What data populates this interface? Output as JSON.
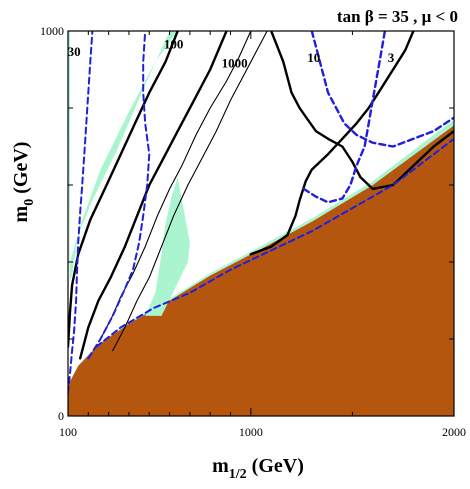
{
  "chart_data": {
    "type": "line",
    "title": "tan β = 35 ,  μ < 0",
    "xlabel": "m1/2 (GeV)",
    "ylabel": "m0 (GeV)",
    "xlabel_main": "m",
    "xlabel_sub": "1/2",
    "xlabel_unit": " (GeV)",
    "ylabel_main": "m",
    "ylabel_sub": "0",
    "ylabel_unit": " (GeV)",
    "xlim": [
      100,
      2000
    ],
    "ylim": [
      0,
      1000
    ],
    "x_ticks": [
      {
        "value": 100,
        "label": "100"
      },
      {
        "value": 1000,
        "label": "1000"
      },
      {
        "value": 2000,
        "label": "2000"
      }
    ],
    "y_ticks": [
      {
        "value": 0,
        "label": "0"
      },
      {
        "value": 1000,
        "label": "1000"
      }
    ],
    "grid": false,
    "colors": {
      "excluded": "#b5560f",
      "relic_band": "#aaf5cf",
      "contour": "#000000",
      "dashed": "#1f1fdd"
    },
    "regions": [
      {
        "name": "charged LSP excluded",
        "color": "#b5560f",
        "points": [
          [
            100,
            0
          ],
          [
            100,
            80
          ],
          [
            150,
            130
          ],
          [
            250,
            185
          ],
          [
            400,
            240
          ],
          [
            600,
            300
          ],
          [
            800,
            365
          ],
          [
            1000,
            420
          ],
          [
            1300,
            505
          ],
          [
            1600,
            600
          ],
          [
            2000,
            755
          ],
          [
            2000,
            0
          ]
        ]
      },
      {
        "name": "relic density band (funnel, left)",
        "color": "#aaf5cf",
        "points": [
          [
            100,
            1000
          ],
          [
            110,
            1000
          ],
          [
            110,
            400
          ],
          [
            170,
            510
          ],
          [
            260,
            640
          ],
          [
            400,
            790
          ],
          [
            530,
            920
          ],
          [
            640,
            1000
          ],
          [
            600,
            1000
          ],
          [
            480,
            860
          ],
          [
            340,
            690
          ],
          [
            220,
            560
          ],
          [
            150,
            470
          ],
          [
            120,
            365
          ],
          [
            108,
            350
          ]
        ]
      },
      {
        "name": "relic density band (funnel, middle)",
        "color": "#aaf5cf",
        "points": [
          [
            480,
            260
          ],
          [
            530,
            320
          ],
          [
            560,
            420
          ],
          [
            580,
            500
          ],
          [
            610,
            570
          ],
          [
            640,
            620
          ],
          [
            700,
            450
          ],
          [
            690,
            400
          ],
          [
            560,
            260
          ]
        ]
      },
      {
        "name": "relic density band (coannihilation strip)",
        "color": "#aaf5cf",
        "points": [
          [
            100,
            80
          ],
          [
            150,
            132
          ],
          [
            250,
            188
          ],
          [
            400,
            244
          ],
          [
            600,
            305
          ],
          [
            800,
            371
          ],
          [
            1000,
            427
          ],
          [
            1300,
            513
          ],
          [
            1600,
            610
          ],
          [
            2000,
            770
          ],
          [
            2000,
            755
          ],
          [
            1600,
            600
          ],
          [
            1300,
            505
          ],
          [
            1000,
            420
          ],
          [
            800,
            365
          ],
          [
            600,
            300
          ],
          [
            400,
            240
          ],
          [
            250,
            185
          ],
          [
            150,
            130
          ],
          [
            100,
            80
          ]
        ]
      },
      {
        "name": "relic density band (bulk)",
        "color": "#aaf5cf",
        "points": [
          [
            100,
            1000
          ],
          [
            104,
            1000
          ],
          [
            104,
            940
          ],
          [
            100,
            940
          ]
        ]
      }
    ],
    "series": [
      {
        "name": "100",
        "style": "solid",
        "width": 2.4,
        "label_at": [
          620,
          955
        ],
        "points": [
          [
            160,
            150
          ],
          [
            200,
            230
          ],
          [
            250,
            300
          ],
          [
            310,
            360
          ],
          [
            380,
            440
          ],
          [
            440,
            520
          ],
          [
            500,
            600
          ],
          [
            560,
            660
          ],
          [
            640,
            740
          ],
          [
            720,
            820
          ],
          [
            800,
            900
          ],
          [
            880,
            1000
          ]
        ]
      },
      {
        "name": "100",
        "style": "solid",
        "width": 2.4,
        "points": [
          [
            100,
            180
          ],
          [
            110,
            270
          ],
          [
            120,
            340
          ],
          [
            150,
            420
          ],
          [
            210,
            510
          ],
          [
            290,
            600
          ],
          [
            360,
            680
          ],
          [
            430,
            760
          ],
          [
            500,
            840
          ],
          [
            580,
            920
          ],
          [
            640,
            1000
          ]
        ]
      },
      {
        "name": "1000",
        "style": "solid",
        "width": 1.1,
        "label_at": [
          920,
          905
        ],
        "points": [
          [
            260,
            200
          ],
          [
            310,
            250
          ],
          [
            360,
            310
          ],
          [
            420,
            370
          ],
          [
            480,
            440
          ],
          [
            540,
            520
          ],
          [
            600,
            590
          ],
          [
            660,
            650
          ],
          [
            730,
            730
          ],
          [
            800,
            800
          ],
          [
            880,
            870
          ],
          [
            940,
            930
          ],
          [
            1000,
            1000
          ]
        ]
      },
      {
        "name": "1000",
        "style": "solid",
        "width": 1.1,
        "points": [
          [
            320,
            170
          ],
          [
            380,
            230
          ],
          [
            440,
            300
          ],
          [
            500,
            360
          ],
          [
            560,
            440
          ],
          [
            620,
            520
          ],
          [
            690,
            600
          ],
          [
            760,
            670
          ],
          [
            830,
            740
          ],
          [
            900,
            820
          ],
          [
            960,
            880
          ],
          [
            1040,
            960
          ],
          [
            1080,
            1000
          ]
        ]
      },
      {
        "name": "10",
        "style": "solid",
        "width": 2.4,
        "label_at": [
          1310,
          920
        ],
        "points": [
          [
            1000,
            420
          ],
          [
            1100,
            440
          ],
          [
            1180,
            470
          ],
          [
            1220,
            520
          ],
          [
            1240,
            560
          ],
          [
            1270,
            610
          ],
          [
            1300,
            640
          ],
          [
            1380,
            680
          ],
          [
            1450,
            720
          ],
          [
            1520,
            760
          ],
          [
            1580,
            800
          ],
          [
            1640,
            850
          ],
          [
            1700,
            900
          ],
          [
            1760,
            950
          ],
          [
            1800,
            1000
          ]
        ]
      },
      {
        "name": "10",
        "style": "solid",
        "width": 2.4,
        "points": [
          [
            1100,
            1000
          ],
          [
            1130,
            960
          ],
          [
            1160,
            920
          ],
          [
            1180,
            880
          ],
          [
            1200,
            840
          ],
          [
            1240,
            800
          ],
          [
            1280,
            770
          ],
          [
            1320,
            740
          ],
          [
            1380,
            720
          ],
          [
            1450,
            700
          ],
          [
            1500,
            660
          ],
          [
            1540,
            620
          ],
          [
            1600,
            590
          ],
          [
            1700,
            600
          ],
          [
            1800,
            650
          ],
          [
            1900,
            700
          ],
          [
            2000,
            740
          ]
        ]
      },
      {
        "name": "30",
        "style": "dashed",
        "width": 2,
        "label_at": [
          130,
          935
        ],
        "points": [
          [
            100,
            60
          ],
          [
            110,
            110
          ],
          [
            120,
            170
          ],
          [
            130,
            220
          ],
          [
            140,
            300
          ],
          [
            145,
            380
          ],
          [
            150,
            450
          ],
          [
            160,
            530
          ],
          [
            170,
            600
          ],
          [
            180,
            680
          ],
          [
            190,
            760
          ],
          [
            200,
            840
          ],
          [
            210,
            920
          ],
          [
            220,
            1000
          ]
        ]
      },
      {
        "name": "30",
        "style": "dashed",
        "width": 2,
        "points": [
          [
            200,
            150
          ],
          [
            260,
            200
          ],
          [
            320,
            260
          ],
          [
            380,
            330
          ],
          [
            420,
            380
          ],
          [
            450,
            450
          ],
          [
            470,
            520
          ],
          [
            490,
            600
          ],
          [
            500,
            680
          ],
          [
            480,
            760
          ],
          [
            470,
            840
          ],
          [
            470,
            920
          ],
          [
            480,
            1000
          ]
        ]
      },
      {
        "name": "3",
        "style": "dashed",
        "width": 2.4,
        "label_at": [
          1690,
          920
        ],
        "points": [
          [
            1260,
            590
          ],
          [
            1320,
            570
          ],
          [
            1380,
            555
          ],
          [
            1450,
            565
          ],
          [
            1490,
            600
          ],
          [
            1520,
            650
          ],
          [
            1560,
            700
          ],
          [
            1580,
            760
          ],
          [
            1600,
            820
          ],
          [
            1620,
            880
          ],
          [
            1640,
            940
          ],
          [
            1660,
            1000
          ]
        ]
      },
      {
        "name": "3",
        "style": "dashed",
        "width": 2.4,
        "points": [
          [
            1300,
            1000
          ],
          [
            1320,
            960
          ],
          [
            1340,
            920
          ],
          [
            1360,
            880
          ],
          [
            1380,
            840
          ],
          [
            1420,
            800
          ],
          [
            1460,
            760
          ],
          [
            1520,
            730
          ],
          [
            1600,
            710
          ],
          [
            1700,
            700
          ],
          [
            1800,
            720
          ],
          [
            1900,
            740
          ],
          [
            2000,
            775
          ]
        ]
      },
      {
        "name": "3",
        "style": "dashed",
        "width": 2,
        "points": [
          [
            240,
            180
          ],
          [
            360,
            230
          ],
          [
            520,
            280
          ],
          [
            700,
            320
          ],
          [
            900,
            380
          ],
          [
            1100,
            430
          ],
          [
            1300,
            480
          ],
          [
            1500,
            540
          ],
          [
            1700,
            600
          ],
          [
            1900,
            680
          ],
          [
            2000,
            720
          ]
        ]
      }
    ]
  }
}
